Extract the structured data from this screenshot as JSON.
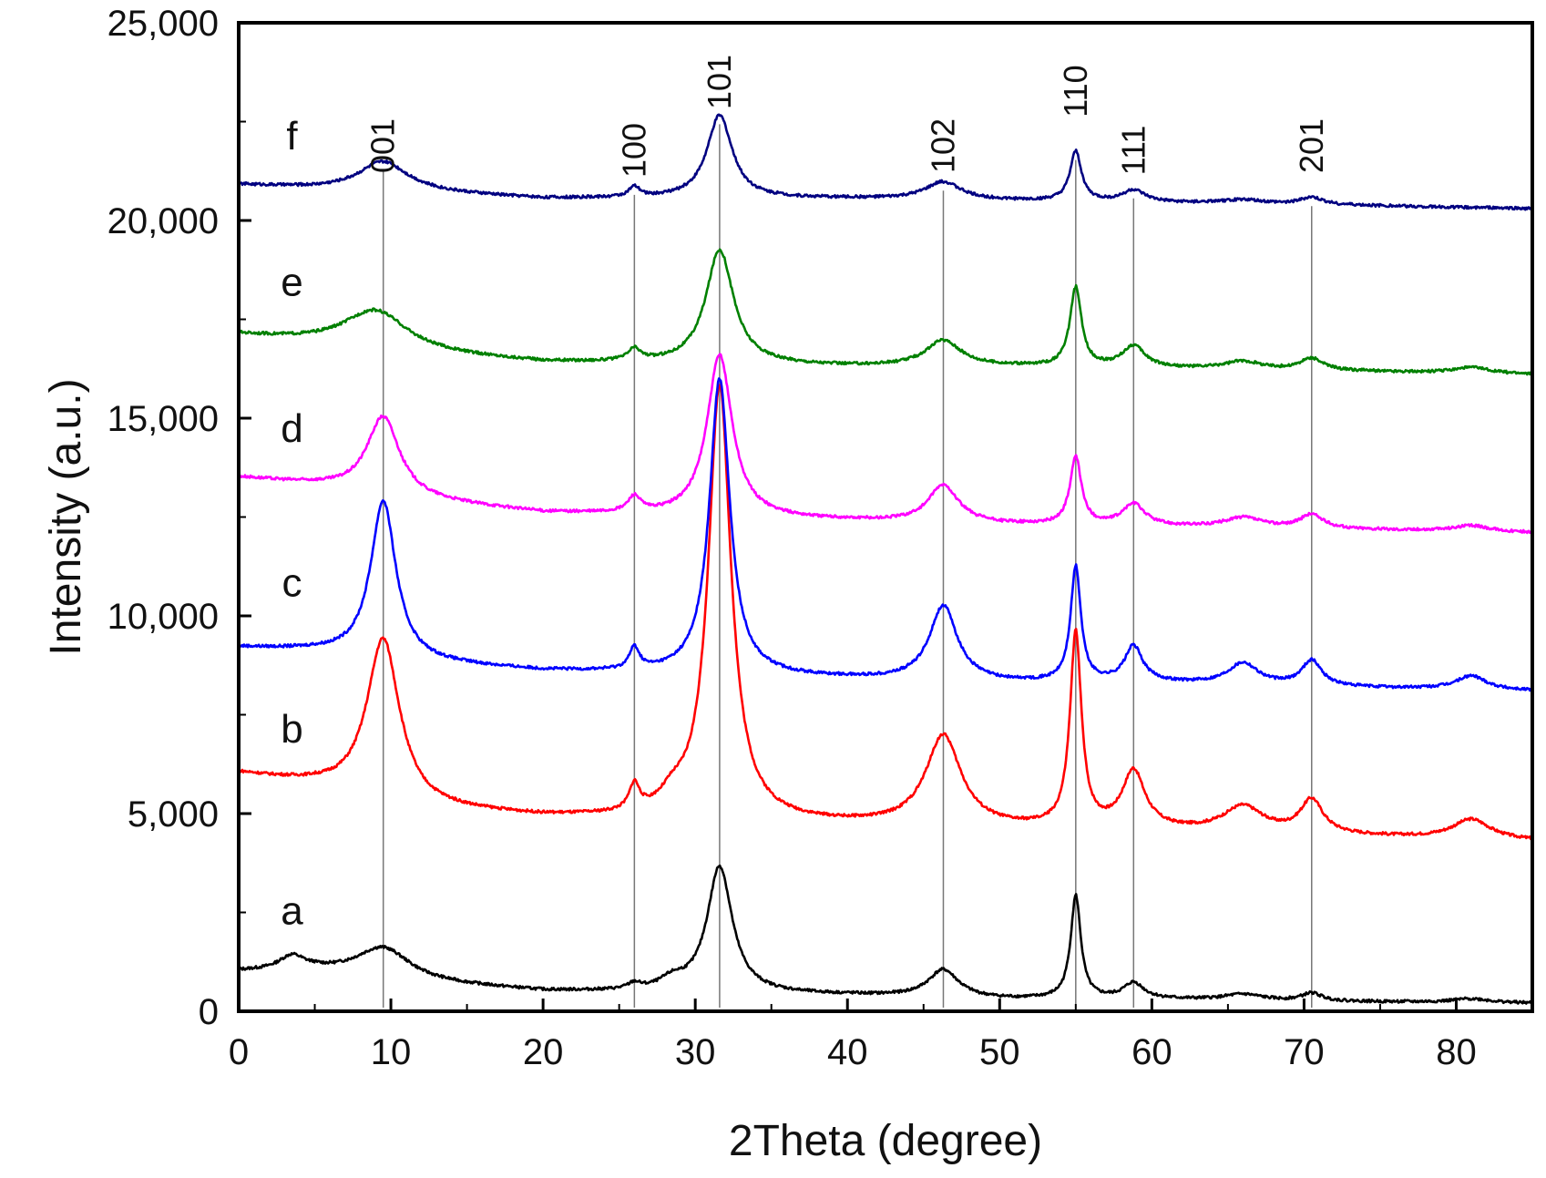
{
  "chart_data": {
    "type": "line",
    "title": "",
    "xlabel": "2Theta (degree)",
    "ylabel": "Intensity (a.u.)",
    "xlim": [
      0,
      85
    ],
    "ylim": [
      0,
      25000
    ],
    "xticks": [
      0,
      10,
      20,
      30,
      40,
      50,
      60,
      70,
      80
    ],
    "yticks": [
      0,
      5000,
      10000,
      15000,
      20000,
      25000
    ],
    "xtick_labels": [
      "0",
      "10",
      "20",
      "30",
      "40",
      "50",
      "60",
      "70",
      "80"
    ],
    "ytick_labels": [
      "0",
      "5,000",
      "10,000",
      "15,000",
      "20,000",
      "25,000"
    ],
    "grid": false,
    "reference_lines": [
      {
        "label": "001",
        "x": 9.5
      },
      {
        "label": "100",
        "x": 26.0
      },
      {
        "label": "101",
        "x": 31.6
      },
      {
        "label": "102",
        "x": 46.3
      },
      {
        "label": "110",
        "x": 55.0
      },
      {
        "label": "111",
        "x": 58.8
      },
      {
        "label": "201",
        "x": 70.5
      }
    ],
    "series": [
      {
        "name": "a",
        "color": "#000000",
        "label_x": 3.5,
        "label_y": 2200,
        "baseline": [
          [
            0,
            1000
          ],
          [
            5,
            1000
          ],
          [
            12,
            700
          ],
          [
            20,
            500
          ],
          [
            30,
            450
          ],
          [
            40,
            400
          ],
          [
            50,
            300
          ],
          [
            60,
            300
          ],
          [
            70,
            250
          ],
          [
            85,
            200
          ]
        ],
        "peaks": [
          [
            3.5,
            350,
            1.0
          ],
          [
            9.5,
            800,
            2.2
          ],
          [
            26.0,
            150,
            0.5
          ],
          [
            28.5,
            250,
            1.0
          ],
          [
            31.6,
            3200,
            1.0
          ],
          [
            46.3,
            700,
            1.2
          ],
          [
            55.0,
            2600,
            0.4
          ],
          [
            58.8,
            400,
            0.8
          ],
          [
            66.0,
            150,
            1.5
          ],
          [
            70.5,
            200,
            0.8
          ],
          [
            81.0,
            100,
            1.5
          ]
        ]
      },
      {
        "name": "b",
        "color": "#ff0000",
        "label_x": 3.5,
        "label_y": 6800,
        "baseline": [
          [
            0,
            6000
          ],
          [
            5,
            5700
          ],
          [
            12,
            5100
          ],
          [
            20,
            4900
          ],
          [
            30,
            4800
          ],
          [
            40,
            4700
          ],
          [
            50,
            4600
          ],
          [
            60,
            4550
          ],
          [
            70,
            4450
          ],
          [
            85,
            4300
          ]
        ],
        "peaks": [
          [
            9.5,
            4100,
            1.3
          ],
          [
            26.0,
            650,
            0.4
          ],
          [
            28.5,
            350,
            1.0
          ],
          [
            31.6,
            11000,
            0.9
          ],
          [
            46.3,
            2300,
            1.4
          ],
          [
            55.0,
            4900,
            0.45
          ],
          [
            58.8,
            1450,
            0.9
          ],
          [
            66.0,
            650,
            1.6
          ],
          [
            70.5,
            850,
            0.9
          ],
          [
            81.0,
            500,
            1.5
          ]
        ]
      },
      {
        "name": "c",
        "color": "#0000ff",
        "label_x": 3.5,
        "label_y": 10500,
        "baseline": [
          [
            0,
            9200
          ],
          [
            5,
            9100
          ],
          [
            12,
            8800
          ],
          [
            20,
            8600
          ],
          [
            30,
            8500
          ],
          [
            40,
            8400
          ],
          [
            50,
            8300
          ],
          [
            60,
            8300
          ],
          [
            70,
            8200
          ],
          [
            85,
            8100
          ]
        ],
        "peaks": [
          [
            9.5,
            4000,
            1.0
          ],
          [
            26.0,
            550,
            0.4
          ],
          [
            31.6,
            7500,
            0.8
          ],
          [
            46.3,
            1900,
            1.1
          ],
          [
            55.0,
            2900,
            0.4
          ],
          [
            58.8,
            900,
            0.7
          ],
          [
            66.0,
            550,
            1.2
          ],
          [
            70.5,
            650,
            0.8
          ],
          [
            81.0,
            350,
            1.2
          ]
        ]
      },
      {
        "name": "d",
        "color": "#ff00ff",
        "label_x": 3.5,
        "label_y": 14400,
        "baseline": [
          [
            0,
            13500
          ],
          [
            5,
            13300
          ],
          [
            12,
            12900
          ],
          [
            20,
            12600
          ],
          [
            30,
            12500
          ],
          [
            40,
            12400
          ],
          [
            50,
            12300
          ],
          [
            60,
            12250
          ],
          [
            70,
            12200
          ],
          [
            85,
            12100
          ]
        ],
        "peaks": [
          [
            9.5,
            2000,
            1.3
          ],
          [
            26.0,
            400,
            0.5
          ],
          [
            31.6,
            4100,
            1.0
          ],
          [
            46.3,
            950,
            1.2
          ],
          [
            55.0,
            1700,
            0.45
          ],
          [
            58.8,
            550,
            0.9
          ],
          [
            66.0,
            250,
            1.5
          ],
          [
            70.5,
            350,
            0.9
          ],
          [
            81.0,
            150,
            1.5
          ]
        ]
      },
      {
        "name": "e",
        "color": "#008000",
        "label_x": 3.5,
        "label_y": 18100,
        "baseline": [
          [
            0,
            17100
          ],
          [
            5,
            16900
          ],
          [
            12,
            16600
          ],
          [
            20,
            16400
          ],
          [
            30,
            16350
          ],
          [
            40,
            16300
          ],
          [
            50,
            16300
          ],
          [
            60,
            16250
          ],
          [
            70,
            16200
          ],
          [
            85,
            16100
          ]
        ],
        "peaks": [
          [
            9.0,
            1000,
            2.6
          ],
          [
            26.0,
            300,
            0.5
          ],
          [
            31.6,
            2900,
            1.1
          ],
          [
            46.3,
            650,
            1.4
          ],
          [
            55.0,
            2000,
            0.45
          ],
          [
            58.8,
            550,
            0.9
          ],
          [
            66.0,
            200,
            1.5
          ],
          [
            70.5,
            300,
            0.9
          ],
          [
            81.0,
            150,
            1.5
          ]
        ]
      },
      {
        "name": "f",
        "color": "#000080",
        "label_x": 3.5,
        "label_y": 21800,
        "baseline": [
          [
            0,
            20900
          ],
          [
            5,
            20800
          ],
          [
            12,
            20700
          ],
          [
            20,
            20550
          ],
          [
            30,
            20550
          ],
          [
            40,
            20550
          ],
          [
            50,
            20500
          ],
          [
            60,
            20450
          ],
          [
            70,
            20400
          ],
          [
            85,
            20300
          ]
        ],
        "peaks": [
          [
            9.5,
            750,
            2.0
          ],
          [
            26.0,
            250,
            0.45
          ],
          [
            31.6,
            2100,
            1.0
          ],
          [
            46.3,
            450,
            1.4
          ],
          [
            55.0,
            1250,
            0.45
          ],
          [
            58.8,
            300,
            0.9
          ],
          [
            66.0,
            100,
            1.5
          ],
          [
            70.5,
            180,
            0.9
          ]
        ]
      }
    ]
  }
}
